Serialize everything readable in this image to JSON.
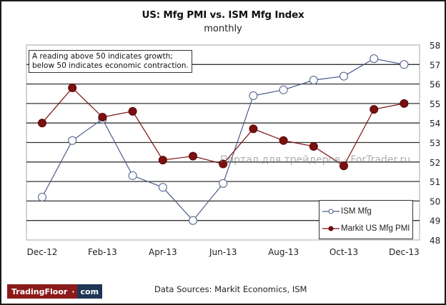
{
  "chart_data": {
    "type": "line",
    "title": "US: Mfg PMI vs. ISM Mfg Index",
    "subtitle": "monthly",
    "x": [
      "Dec-12",
      "Jan-13",
      "Feb-13",
      "Mar-13",
      "Apr-13",
      "May-13",
      "Jun-13",
      "Jul-13",
      "Aug-13",
      "Sep-13",
      "Oct-13",
      "Nov-13",
      "Dec-13"
    ],
    "x_tick_labels": [
      "Dec-12",
      "Feb-13",
      "Apr-13",
      "Jun-13",
      "Aug-13",
      "Oct-13",
      "Dec-13"
    ],
    "y_ticks": [
      48,
      49,
      50,
      51,
      52,
      53,
      54,
      55,
      56,
      57,
      58
    ],
    "ylim": [
      48,
      58
    ],
    "y_axis_side": "right",
    "grid": true,
    "legend_position": "bottom-right",
    "series": [
      {
        "name": "ISM Mfg",
        "marker": "open-circle",
        "color": "#4a5a8a",
        "values": [
          50.2,
          53.1,
          54.2,
          51.3,
          50.7,
          49.0,
          50.9,
          55.4,
          55.7,
          56.2,
          56.4,
          57.3,
          57.0
        ]
      },
      {
        "name": "Markit US Mfg PMI",
        "marker": "filled-circle",
        "color": "#7a1010",
        "values": [
          54.0,
          55.8,
          54.3,
          54.6,
          52.1,
          52.3,
          51.9,
          53.7,
          53.1,
          52.8,
          51.8,
          54.7,
          55.0
        ]
      }
    ],
    "annotation": {
      "line1": "A reading above 50 indicates growth;",
      "line2": "below 50 indicates economic contraction."
    },
    "xlabel": "",
    "ylabel": ""
  },
  "footer": {
    "source": "Data Sources: Markit Economics, ISM",
    "logo_left": "TradingFloor",
    "logo_right": "com"
  },
  "watermark": "Портал для трейдеров - ForTrader.ru"
}
